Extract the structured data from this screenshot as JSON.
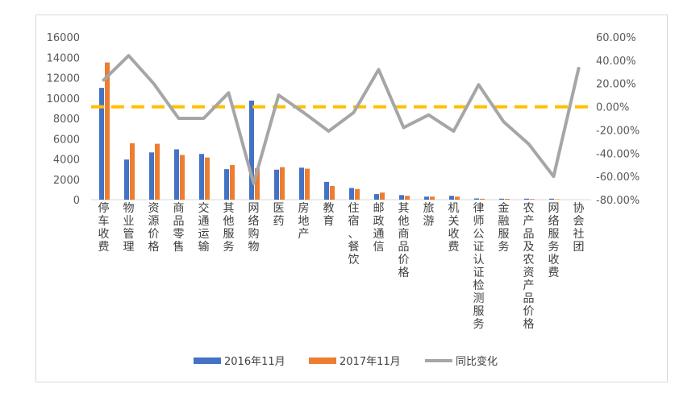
{
  "chart_data": {
    "type": "bar",
    "categories": [
      "停车收费",
      "物业管理",
      "资源价格",
      "商品零售",
      "交通运输",
      "其他服务",
      "网络购物",
      "医药",
      "房地产",
      "教育",
      "住宿、餐饮",
      "邮政通信",
      "其他商品价格",
      "旅游",
      "机关收费",
      "律师公证认证检测服务",
      "金融服务",
      "农产品及农资产品价格",
      "网络服务收费",
      "协会社团"
    ],
    "series": [
      {
        "name": "2016年11月",
        "type": "bar",
        "axis": "left",
        "color": "#4472C4",
        "values": [
          11000,
          3950,
          4650,
          4950,
          4500,
          3000,
          9750,
          2950,
          3150,
          1750,
          1150,
          550,
          450,
          300,
          380,
          120,
          100,
          100,
          100,
          0
        ]
      },
      {
        "name": "2017年11月",
        "type": "bar",
        "axis": "left",
        "color": "#ED7D31",
        "values": [
          13500,
          5550,
          5500,
          4400,
          4150,
          3400,
          3100,
          3200,
          3050,
          1350,
          1050,
          700,
          380,
          300,
          300,
          90,
          80,
          60,
          40,
          0
        ]
      },
      {
        "name": "同比变化",
        "type": "line",
        "axis": "right",
        "color": "#A6A6A6",
        "values": [
          0.23,
          0.44,
          0.2,
          -0.1,
          -0.1,
          0.12,
          -0.66,
          0.1,
          -0.05,
          -0.21,
          -0.05,
          0.32,
          -0.18,
          -0.07,
          -0.21,
          0.19,
          -0.13,
          -0.32,
          -0.6,
          0.33
        ]
      }
    ],
    "reference_line": {
      "axis": "right",
      "value": 0.0,
      "color": "#FFC000",
      "style": "dashed"
    },
    "yticks_left": [
      "16000",
      "14000",
      "12000",
      "10000",
      "8000",
      "6000",
      "4000",
      "2000",
      "0"
    ],
    "yticks_right": [
      "60.00%",
      "40.00%",
      "20.00%",
      "0.00%",
      "-20.00%",
      "-40.00%",
      "-60.00%",
      "-80.00%"
    ],
    "ylim_left": [
      0,
      16000
    ],
    "ylim_right": [
      -0.8,
      0.6
    ],
    "legend_position": "bottom",
    "grid": false
  }
}
